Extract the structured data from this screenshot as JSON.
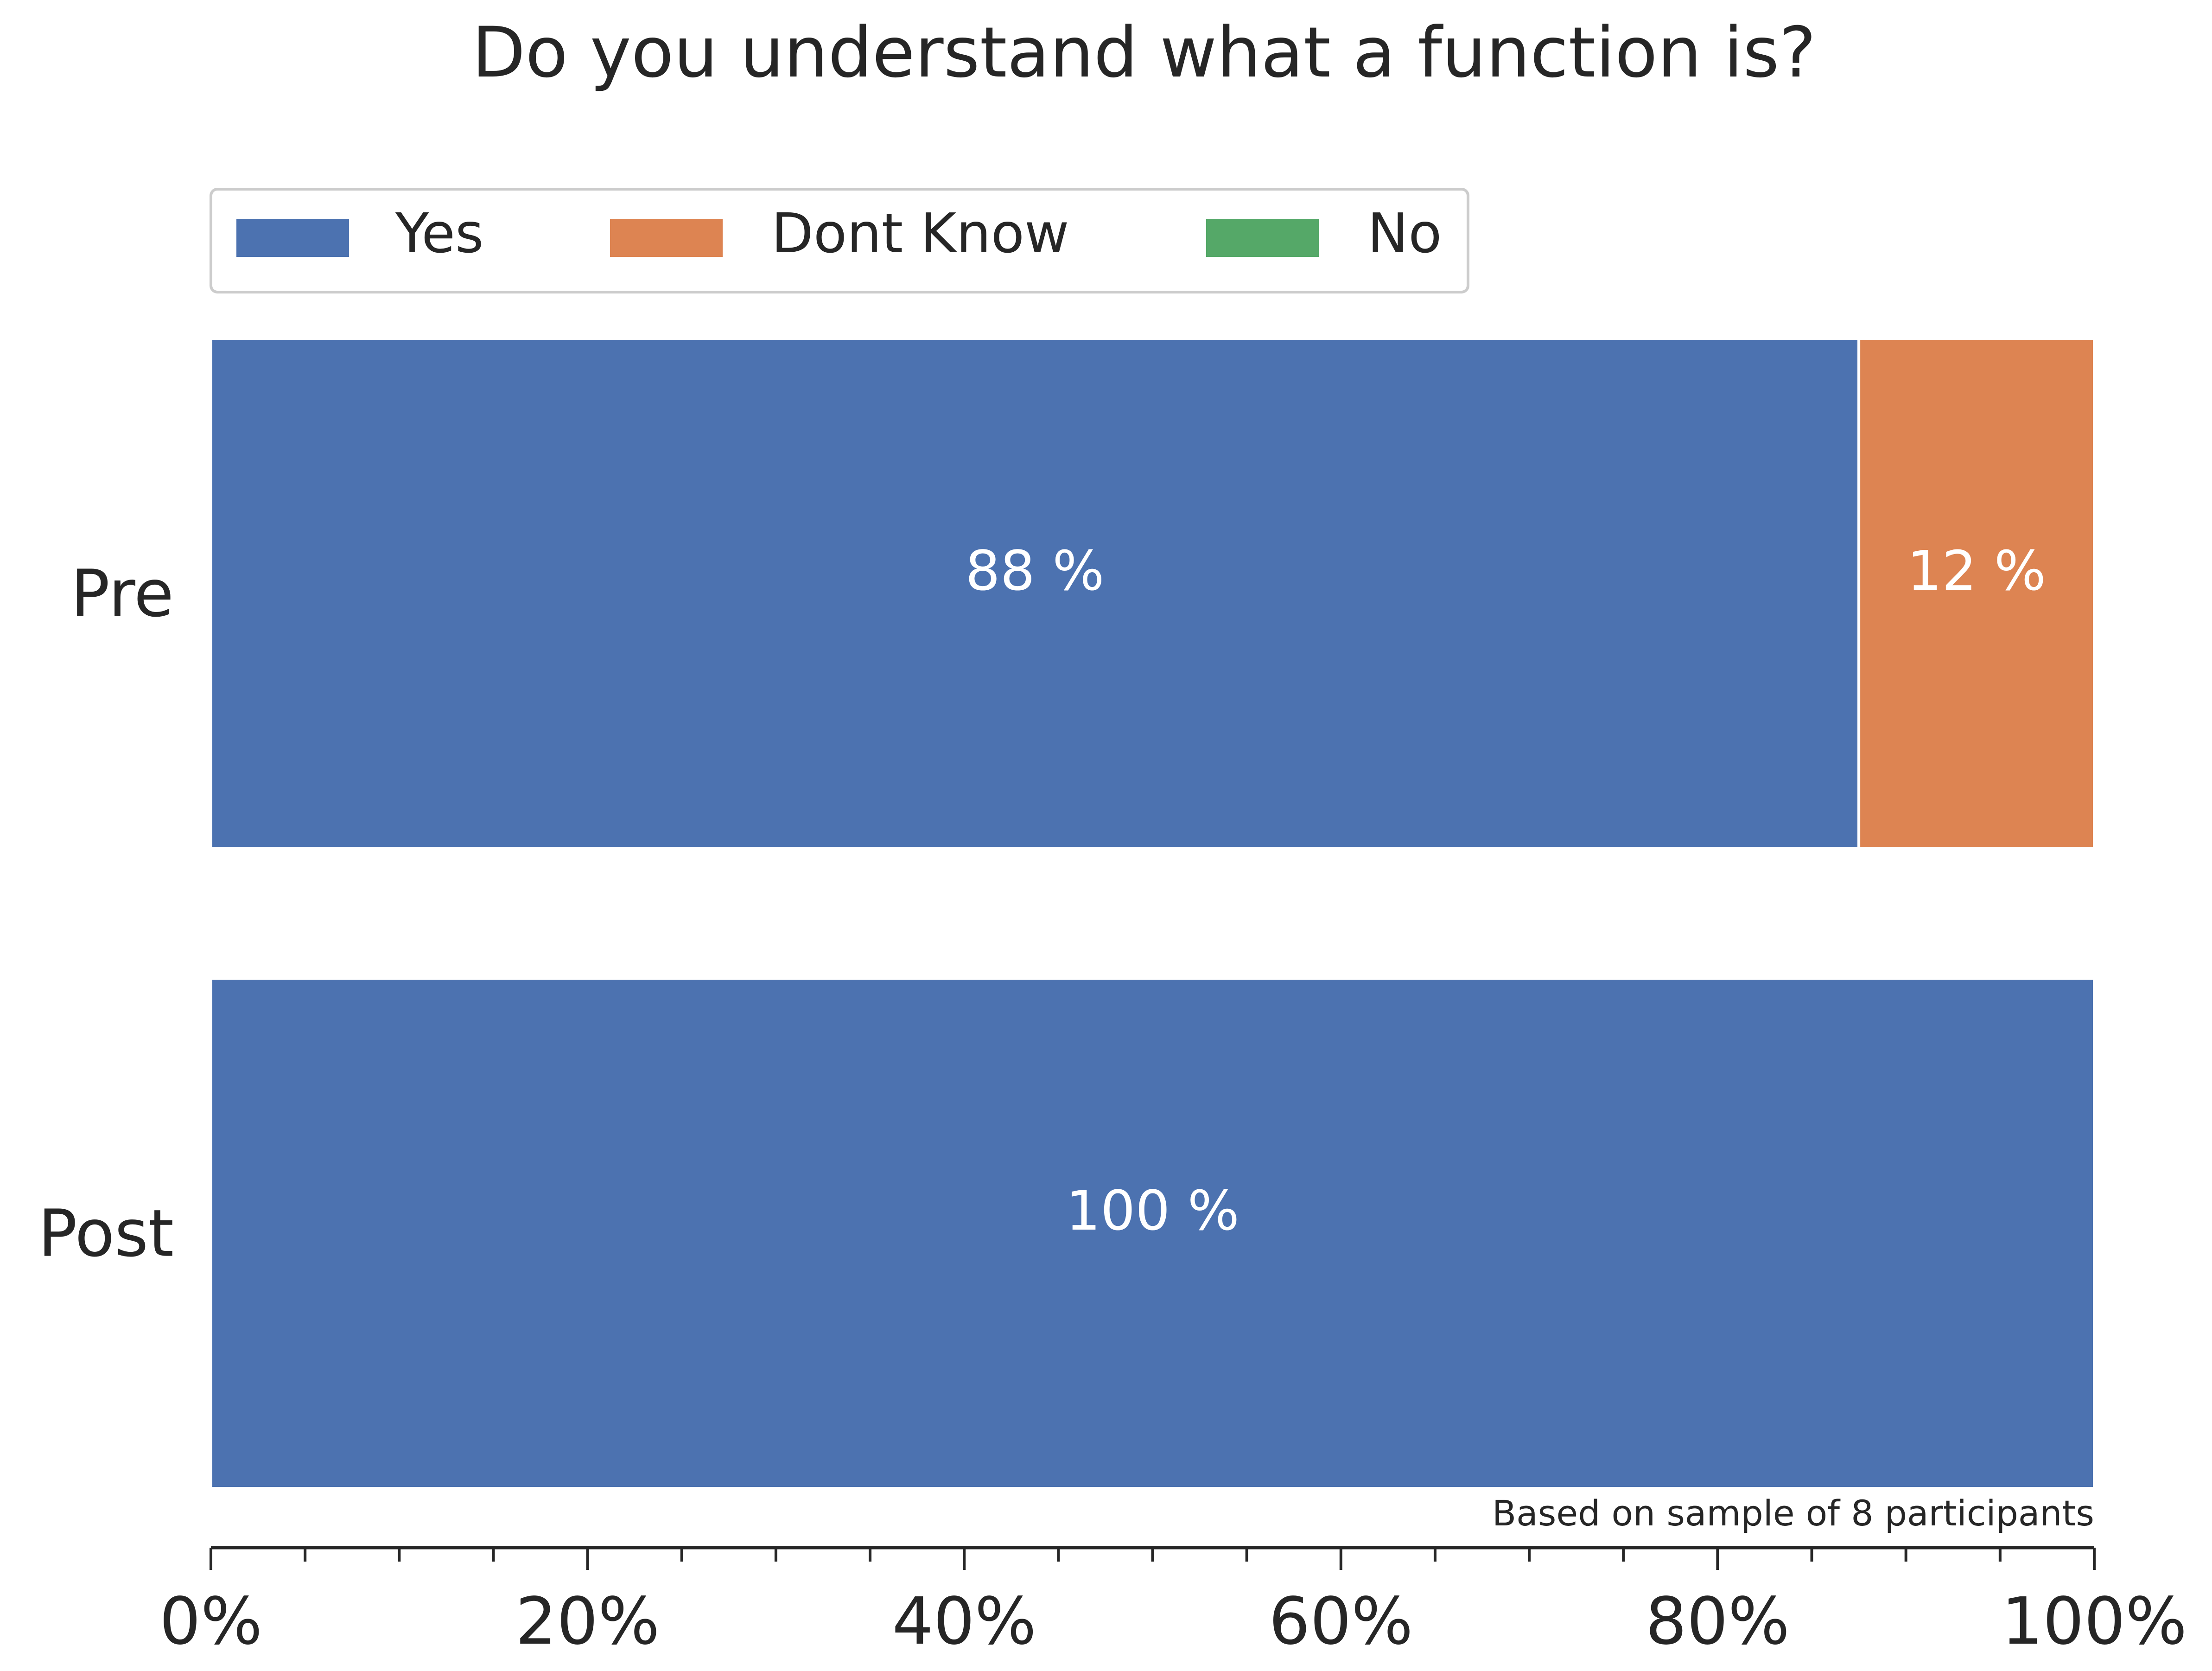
{
  "chart_data": {
    "type": "bar",
    "orientation": "horizontal",
    "stacked": true,
    "title": "Do you understand what a function is?",
    "categories": [
      "Pre",
      "Post"
    ],
    "series": [
      {
        "name": "Yes",
        "color": "#4c72b0",
        "values": [
          87.5,
          100
        ]
      },
      {
        "name": "Dont Know",
        "color": "#dd8452",
        "values": [
          12.5,
          0
        ]
      },
      {
        "name": "No",
        "color": "#55a868",
        "values": [
          0,
          0
        ]
      }
    ],
    "bar_labels": [
      [
        "88 %",
        "100 %"
      ],
      [
        "12 %",
        ""
      ],
      [
        "",
        ""
      ]
    ],
    "xlim": [
      0,
      100
    ],
    "x_ticks": [
      0,
      20,
      40,
      60,
      80,
      100
    ],
    "x_tick_labels": [
      "0%",
      "20%",
      "40%",
      "60%",
      "80%",
      "100%"
    ],
    "x_minor_tick_step": 5,
    "legend_position": "top-left",
    "annotation": "Based on sample of 8 participants",
    "grid": false
  }
}
